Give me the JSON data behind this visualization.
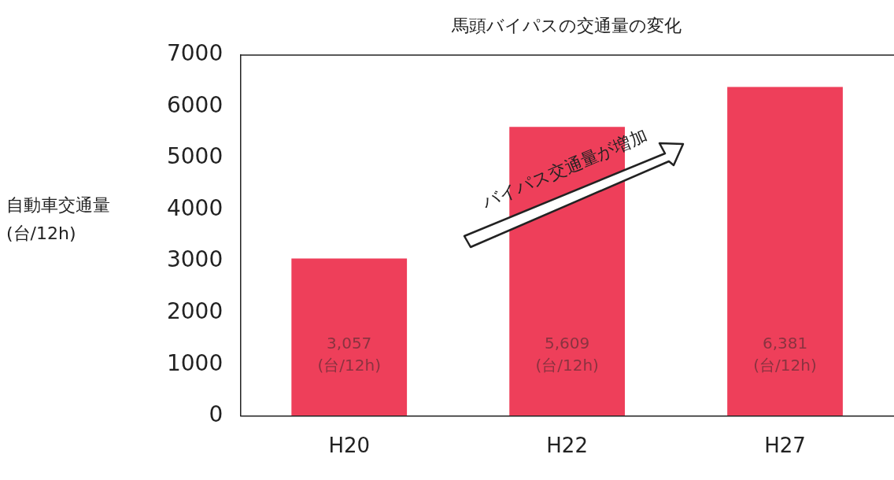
{
  "chart_data": {
    "type": "bar",
    "title": "馬頭バイパスの交通量の変化",
    "ylabel": "自動車交通量\n(台/12h)",
    "categories": [
      "H20",
      "H22",
      "H27"
    ],
    "values": [
      3057,
      5609,
      6381
    ],
    "value_labels": [
      "3,057\n(台/12h)",
      "5,609\n(台/12h)",
      "6,381\n(台/12h)"
    ],
    "color": "#ee3f5a",
    "ylim": [
      0,
      7000
    ],
    "yticks": [
      0,
      1000,
      2000,
      3000,
      4000,
      5000,
      6000,
      7000
    ],
    "annotations": [
      "バイパス交通量が増加"
    ],
    "grid": false,
    "legend": false
  }
}
